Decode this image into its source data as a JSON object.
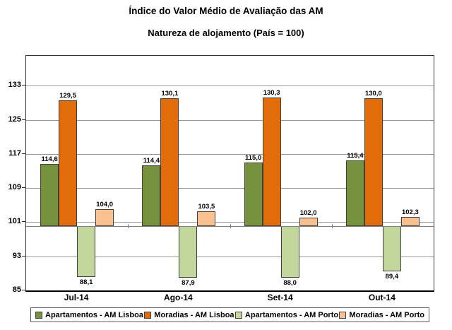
{
  "title": "Índice do Valor Médio de Avaliação das AM",
  "subtitle": "Natureza de alojamento (País = 100)",
  "chart_data": {
    "type": "bar",
    "categories": [
      "Jul-14",
      "Ago-14",
      "Set-14",
      "Out-14"
    ],
    "series": [
      {
        "name": "Apartamentos - AM Lisboa",
        "color": "#76923C",
        "values": [
          114.6,
          114.4,
          115.0,
          115.4
        ]
      },
      {
        "name": "Moradias - AM Lisboa",
        "color": "#E36C0A",
        "values": [
          129.5,
          130.1,
          130.3,
          130.0
        ]
      },
      {
        "name": "Apartamentos - AM Porto",
        "color": "#C3D69B",
        "values": [
          88.1,
          87.9,
          88.0,
          89.4
        ]
      },
      {
        "name": "Moradias - AM Porto",
        "color": "#FAC08F",
        "values": [
          104.0,
          103.5,
          102.0,
          102.3
        ]
      }
    ],
    "baseline": 100,
    "ylim": [
      85,
      140
    ],
    "yticks": [
      85,
      93,
      101,
      109,
      117,
      125,
      133
    ],
    "grid": true,
    "legend_position": "bottom",
    "value_labels_shown": true,
    "decimal_separator": ","
  },
  "colors": {
    "grid": "#999999",
    "category_axis": "#808080",
    "plot_border": "#333333",
    "text": "#000000",
    "background": "#FFFFFF"
  }
}
